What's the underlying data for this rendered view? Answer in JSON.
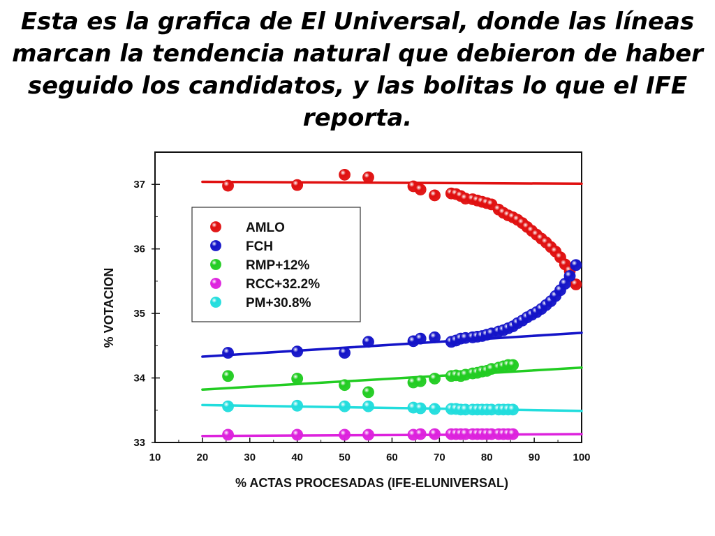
{
  "slide": {
    "title": "Esta es la grafica de El Universal, donde las líneas marcan la tendencia natural que debieron de haber seguido los candidatos, y las bolitas lo que el IFE reporta."
  },
  "chart_data": {
    "type": "scatter",
    "xlabel": "% ACTAS PROCESADAS (IFE-ELUNIVERSAL)",
    "ylabel": "% VOTACION",
    "xlim": [
      10,
      100
    ],
    "ylim": [
      33,
      37.5
    ],
    "xticks": [
      10,
      20,
      30,
      40,
      50,
      60,
      70,
      80,
      90,
      100
    ],
    "yticks": [
      33,
      34,
      35,
      36,
      37
    ],
    "legend_position": "upper-left",
    "grid": false,
    "series": [
      {
        "name": "AMLO",
        "color": "#e01010",
        "trend_line": [
          [
            20,
            37.04
          ],
          [
            100,
            37.01
          ]
        ],
        "points": [
          [
            25.4,
            36.98
          ],
          [
            40,
            36.99
          ],
          [
            50,
            37.15
          ],
          [
            55,
            37.11
          ],
          [
            64.5,
            36.97
          ],
          [
            66,
            36.92
          ],
          [
            69,
            36.83
          ],
          [
            72.5,
            36.86
          ],
          [
            73.5,
            36.85
          ],
          [
            74.5,
            36.82
          ],
          [
            75.5,
            36.78
          ],
          [
            77,
            36.77
          ],
          [
            78,
            36.75
          ],
          [
            79,
            36.73
          ],
          [
            80,
            36.71
          ],
          [
            81,
            36.69
          ],
          [
            82.5,
            36.61
          ],
          [
            83.5,
            36.56
          ],
          [
            84.5,
            36.52
          ],
          [
            85.5,
            36.49
          ],
          [
            86.5,
            36.45
          ],
          [
            87.5,
            36.4
          ],
          [
            88.5,
            36.34
          ],
          [
            89.5,
            36.28
          ],
          [
            90.5,
            36.22
          ],
          [
            91.5,
            36.16
          ],
          [
            92.5,
            36.1
          ],
          [
            93.5,
            36.03
          ],
          [
            94.5,
            35.96
          ],
          [
            95.5,
            35.87
          ],
          [
            96.5,
            35.76
          ],
          [
            97.5,
            35.66
          ],
          [
            98.8,
            35.45
          ]
        ]
      },
      {
        "name": "FCH",
        "color": "#1414c8",
        "trend_line": [
          [
            20,
            34.33
          ],
          [
            100,
            34.7
          ]
        ],
        "points": [
          [
            25.4,
            34.39
          ],
          [
            40,
            34.41
          ],
          [
            50,
            34.39
          ],
          [
            55,
            34.56
          ],
          [
            64.5,
            34.57
          ],
          [
            66,
            34.61
          ],
          [
            69,
            34.63
          ],
          [
            72.5,
            34.56
          ],
          [
            73.5,
            34.58
          ],
          [
            74.5,
            34.61
          ],
          [
            75.5,
            34.62
          ],
          [
            77,
            34.63
          ],
          [
            78,
            34.64
          ],
          [
            79,
            34.65
          ],
          [
            80,
            34.67
          ],
          [
            81,
            34.69
          ],
          [
            82.5,
            34.72
          ],
          [
            83.5,
            34.74
          ],
          [
            84.5,
            34.77
          ],
          [
            85.5,
            34.8
          ],
          [
            86.5,
            34.85
          ],
          [
            87.5,
            34.89
          ],
          [
            88.5,
            34.94
          ],
          [
            89.5,
            34.98
          ],
          [
            90.5,
            35.02
          ],
          [
            91.5,
            35.07
          ],
          [
            92.5,
            35.13
          ],
          [
            93.5,
            35.19
          ],
          [
            94.5,
            35.27
          ],
          [
            95.5,
            35.36
          ],
          [
            96.5,
            35.46
          ],
          [
            97.5,
            35.58
          ],
          [
            98.8,
            35.75
          ]
        ]
      },
      {
        "name": "RMP+12%",
        "color": "#22cc22",
        "trend_line": [
          [
            20,
            33.82
          ],
          [
            100,
            34.16
          ]
        ],
        "points": [
          [
            25.4,
            34.03
          ],
          [
            40,
            33.99
          ],
          [
            50,
            33.89
          ],
          [
            55,
            33.78
          ],
          [
            64.5,
            33.93
          ],
          [
            66,
            33.95
          ],
          [
            69,
            33.99
          ],
          [
            72.5,
            34.03
          ],
          [
            73.5,
            34.04
          ],
          [
            74.5,
            34.03
          ],
          [
            75.5,
            34.05
          ],
          [
            77,
            34.07
          ],
          [
            78,
            34.08
          ],
          [
            79,
            34.1
          ],
          [
            80,
            34.11
          ],
          [
            81,
            34.14
          ],
          [
            82.5,
            34.16
          ],
          [
            83.5,
            34.18
          ],
          [
            84.5,
            34.2
          ],
          [
            85.5,
            34.2
          ]
        ]
      },
      {
        "name": "RCC+32.2%",
        "color": "#dd22dd",
        "trend_line": [
          [
            20,
            33.1
          ],
          [
            100,
            33.13
          ]
        ],
        "points": [
          [
            25.4,
            33.12
          ],
          [
            40,
            33.12
          ],
          [
            50,
            33.12
          ],
          [
            55,
            33.12
          ],
          [
            64.5,
            33.12
          ],
          [
            66,
            33.13
          ],
          [
            69,
            33.13
          ],
          [
            72.5,
            33.13
          ],
          [
            73.5,
            33.13
          ],
          [
            74.5,
            33.13
          ],
          [
            75.5,
            33.13
          ],
          [
            77,
            33.13
          ],
          [
            78,
            33.13
          ],
          [
            79,
            33.13
          ],
          [
            80,
            33.13
          ],
          [
            81,
            33.13
          ],
          [
            82.5,
            33.13
          ],
          [
            83.5,
            33.13
          ],
          [
            84.5,
            33.13
          ],
          [
            85.5,
            33.13
          ]
        ]
      },
      {
        "name": "PM+30.8%",
        "color": "#22dddd",
        "trend_line": [
          [
            20,
            33.58
          ],
          [
            100,
            33.49
          ]
        ],
        "points": [
          [
            25.4,
            33.56
          ],
          [
            40,
            33.57
          ],
          [
            50,
            33.56
          ],
          [
            55,
            33.56
          ],
          [
            64.5,
            33.54
          ],
          [
            66,
            33.53
          ],
          [
            69,
            33.52
          ],
          [
            72.5,
            33.52
          ],
          [
            73.5,
            33.52
          ],
          [
            74.5,
            33.51
          ],
          [
            75.5,
            33.51
          ],
          [
            77,
            33.51
          ],
          [
            78,
            33.51
          ],
          [
            79,
            33.51
          ],
          [
            80,
            33.51
          ],
          [
            81,
            33.51
          ],
          [
            82.5,
            33.51
          ],
          [
            83.5,
            33.51
          ],
          [
            84.5,
            33.51
          ],
          [
            85.5,
            33.51
          ]
        ]
      }
    ]
  }
}
